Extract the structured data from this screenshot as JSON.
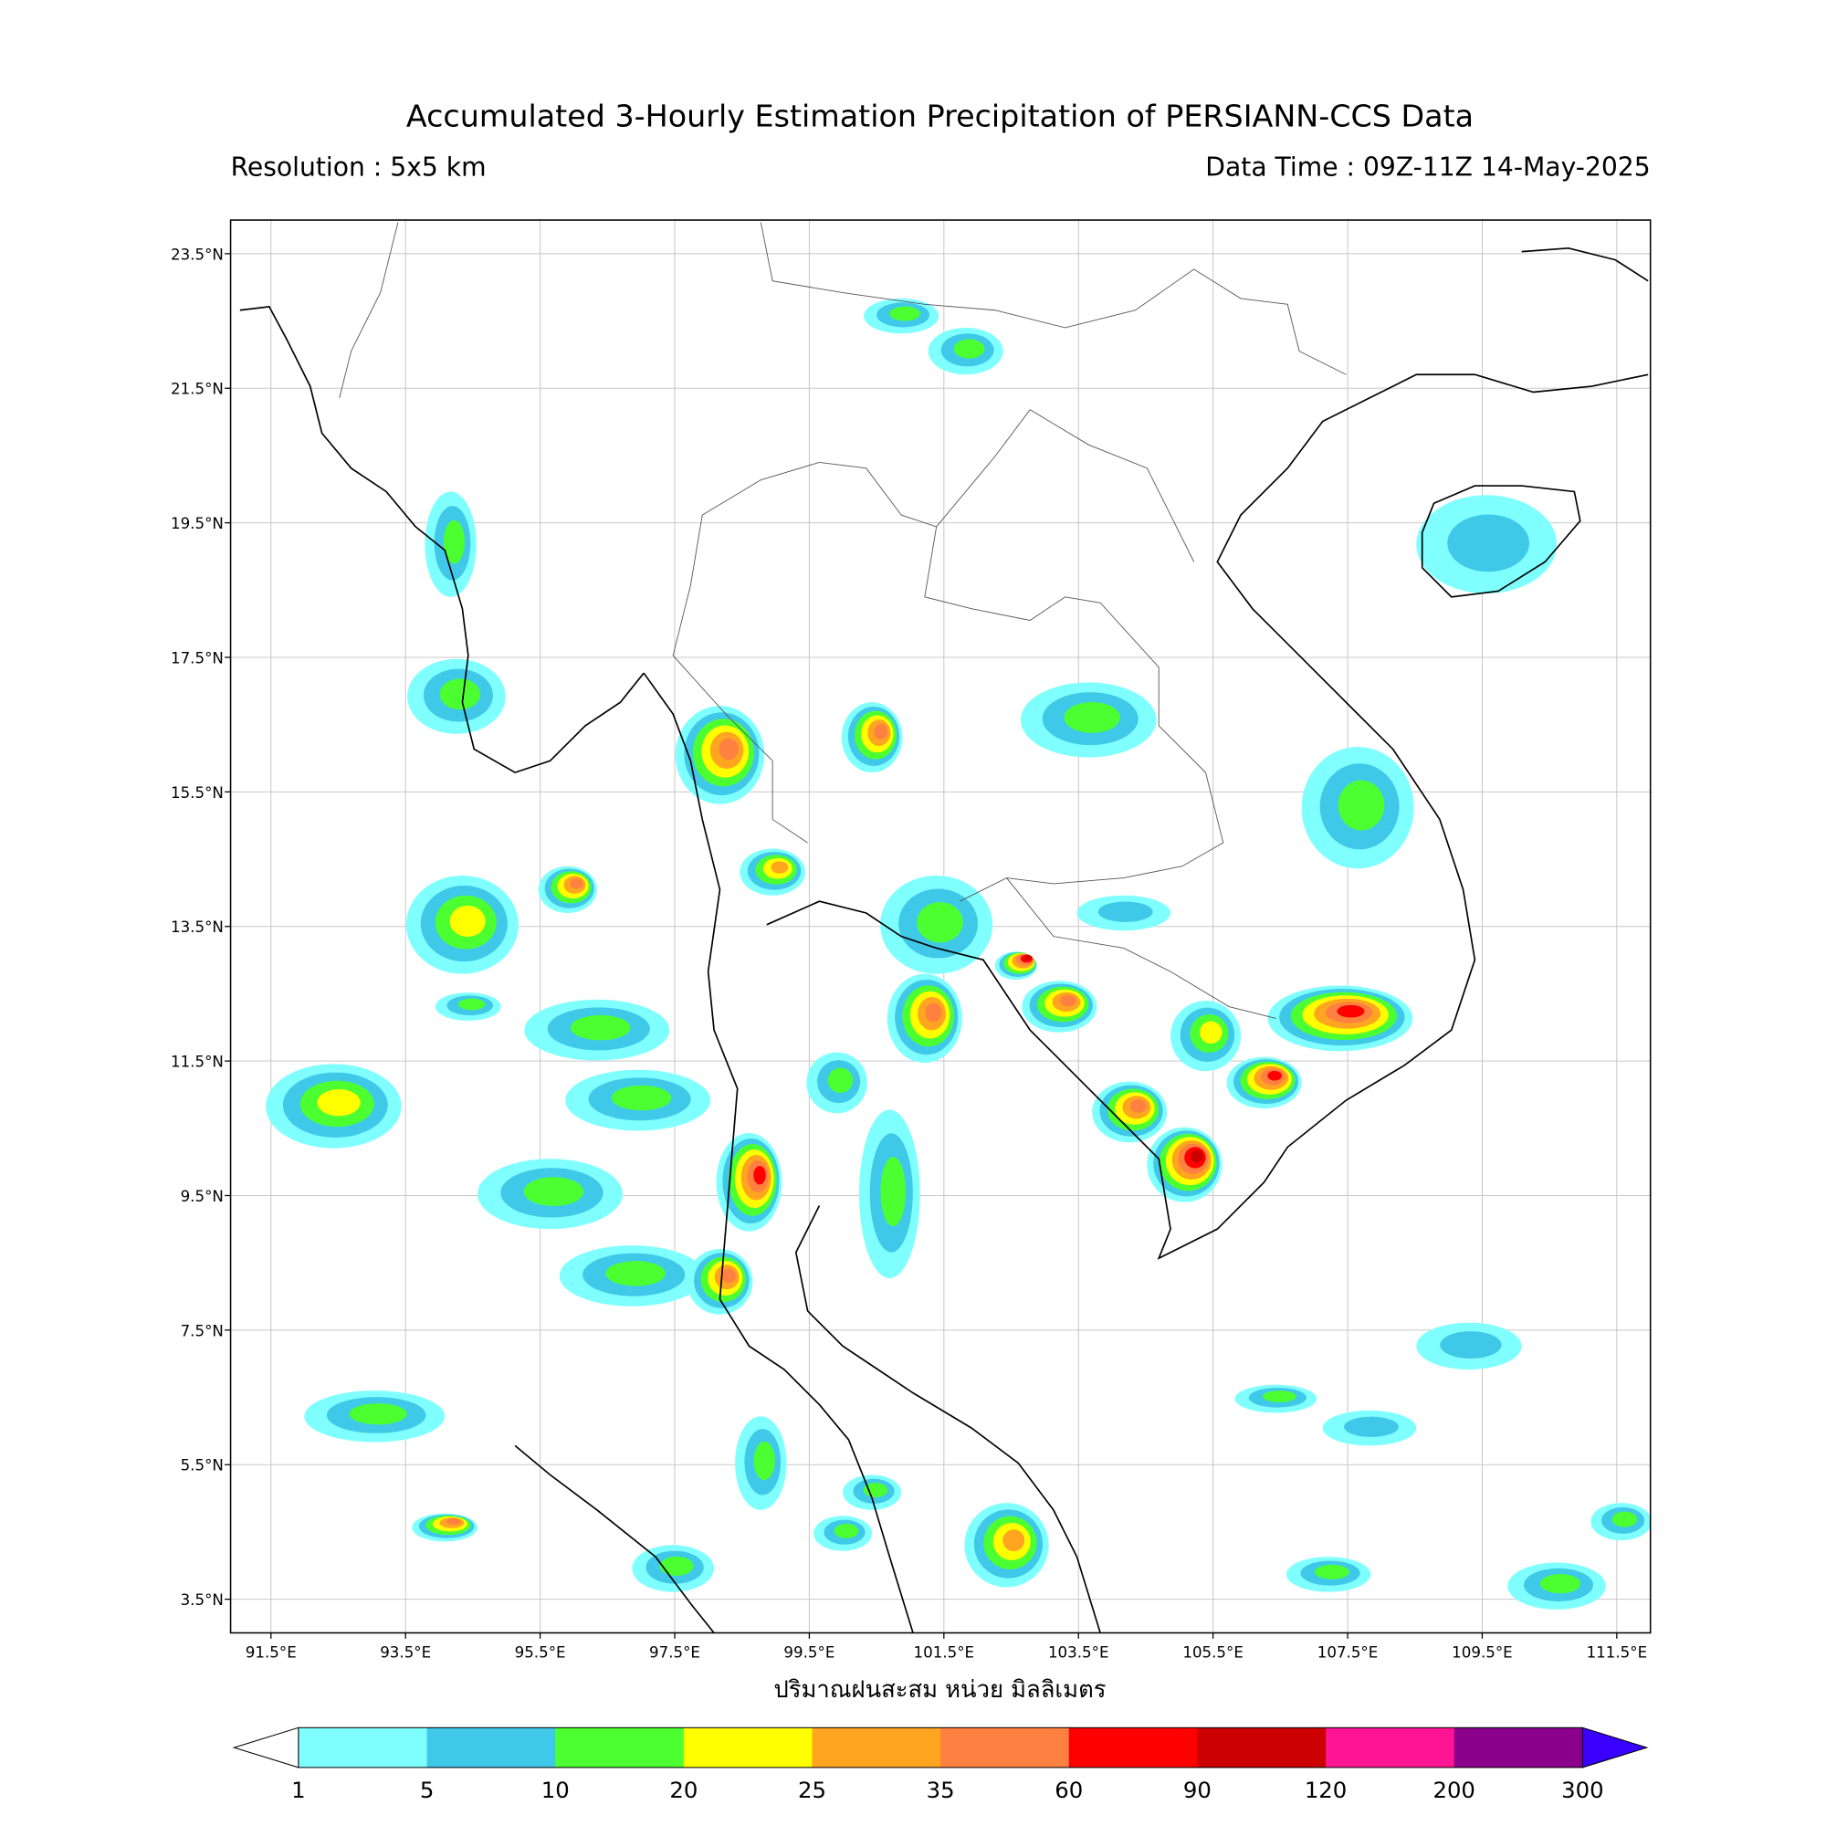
{
  "header": {
    "title": "Accumulated 3-Hourly Estimation Precipitation of PERSIANN-CCS Data",
    "resolution": "Resolution : 5x5 km",
    "data_time": "Data Time : 09Z-11Z 14-May-2025"
  },
  "map": {
    "xlim": [
      90.9,
      112.0
    ],
    "ylim": [
      3.0,
      24.0
    ],
    "xticks": [
      {
        "value": 91.5,
        "label": "91.5°E"
      },
      {
        "value": 93.5,
        "label": "93.5°E"
      },
      {
        "value": 95.5,
        "label": "95.5°E"
      },
      {
        "value": 97.5,
        "label": "97.5°E"
      },
      {
        "value": 99.5,
        "label": "99.5°E"
      },
      {
        "value": 101.5,
        "label": "101.5°E"
      },
      {
        "value": 103.5,
        "label": "103.5°E"
      },
      {
        "value": 105.5,
        "label": "105.5°E"
      },
      {
        "value": 107.5,
        "label": "107.5°E"
      },
      {
        "value": 109.5,
        "label": "109.5°E"
      },
      {
        "value": 111.5,
        "label": "111.5°E"
      }
    ],
    "yticks": [
      {
        "value": 23.5,
        "label": "23.5°N"
      },
      {
        "value": 21.5,
        "label": "21.5°N"
      },
      {
        "value": 19.5,
        "label": "19.5°N"
      },
      {
        "value": 17.5,
        "label": "17.5°N"
      },
      {
        "value": 15.5,
        "label": "15.5°N"
      },
      {
        "value": 13.5,
        "label": "13.5°N"
      },
      {
        "value": 11.5,
        "label": "11.5°N"
      },
      {
        "value": 9.5,
        "label": "9.5°N"
      },
      {
        "value": 7.5,
        "label": "7.5°N"
      },
      {
        "value": 5.5,
        "label": "5.5°N"
      },
      {
        "value": 3.5,
        "label": "3.5°N"
      }
    ],
    "grid": true,
    "xlabel": "ปริมาณฝนสะสม หน่วย มิลลิเมตร"
  },
  "colorbar": {
    "levels": [
      1,
      5,
      10,
      20,
      25,
      35,
      60,
      90,
      120,
      200,
      300
    ],
    "colors": [
      "#80ffff",
      "#40c8e8",
      "#4cff30",
      "#ffff00",
      "#ffa520",
      "#ff8040",
      "#ff0000",
      "#cc0000",
      "#ff1493",
      "#8b008b"
    ],
    "under_color": "#ffffff",
    "over_color": "#3a00ff"
  }
}
